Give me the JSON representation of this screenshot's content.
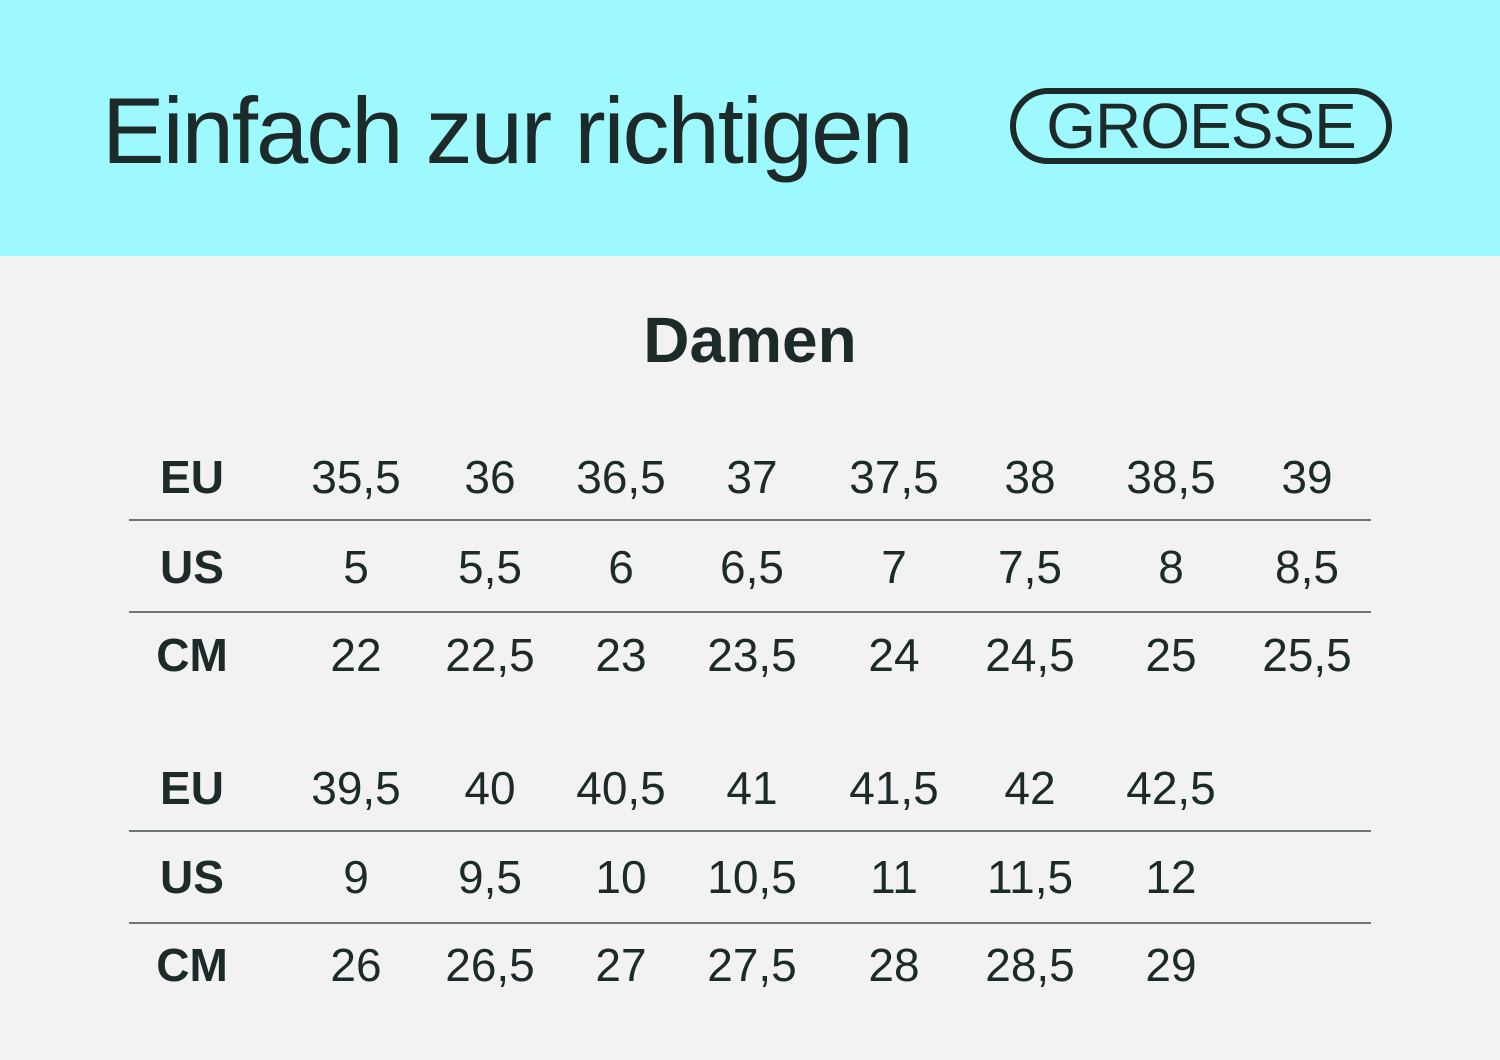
{
  "header": {
    "title": "Einfach zur richtigen",
    "badge": "GROESSE",
    "background_color": "#9ef9ff",
    "text_color": "#1c2a2a"
  },
  "section_title": "Damen",
  "tables": [
    {
      "rows": [
        {
          "label": "EU",
          "values": [
            "35,5",
            "36",
            "36,5",
            "37",
            "37,5",
            "38",
            "38,5",
            "39"
          ]
        },
        {
          "label": "US",
          "values": [
            "5",
            "5,5",
            "6",
            "6,5",
            "7",
            "7,5",
            "8",
            "8,5"
          ]
        },
        {
          "label": "CM",
          "values": [
            "22",
            "22,5",
            "23",
            "23,5",
            "24",
            "24,5",
            "25",
            "25,5"
          ]
        }
      ]
    },
    {
      "rows": [
        {
          "label": "EU",
          "values": [
            "39,5",
            "40",
            "40,5",
            "41",
            "41,5",
            "42",
            "42,5"
          ]
        },
        {
          "label": "US",
          "values": [
            "9",
            "9,5",
            "10",
            "10,5",
            "11",
            "11,5",
            "12"
          ]
        },
        {
          "label": "CM",
          "values": [
            "26",
            "26,5",
            "27",
            "27,5",
            "28",
            "28,5",
            "29"
          ]
        }
      ]
    }
  ]
}
